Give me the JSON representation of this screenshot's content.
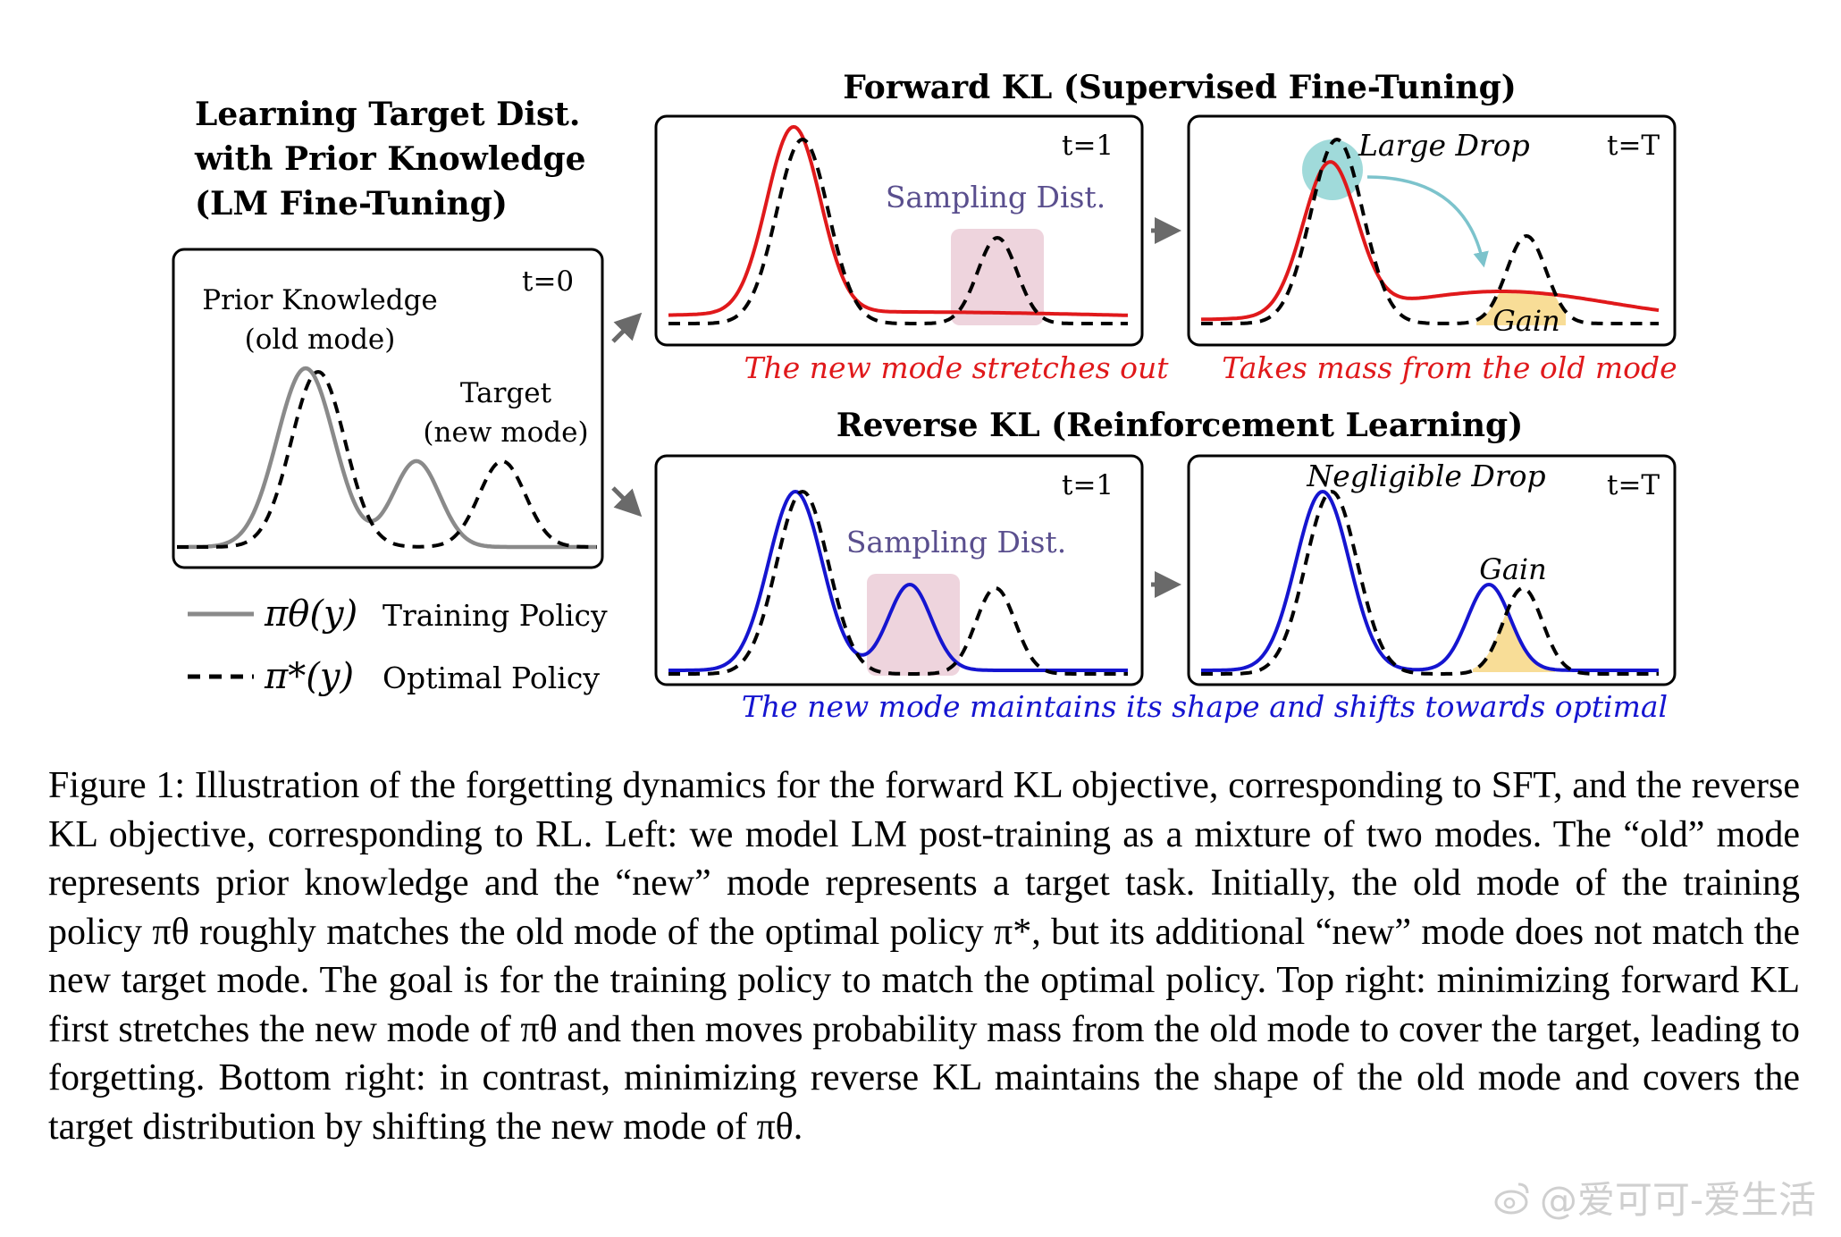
{
  "left_panel": {
    "heading_lines": [
      "Learning Target Dist.",
      "with Prior Knowledge",
      "(LM Fine-Tuning)"
    ],
    "time_label": "t=0",
    "prior_lines": [
      "Prior Knowledge",
      "(old mode)"
    ],
    "target_lines": [
      "Target",
      "(new mode)"
    ]
  },
  "legend": {
    "training_symbol": "πθ(y)",
    "training_label": "Training Policy",
    "optimal_symbol": "π*(y)",
    "optimal_label": "Optimal Policy"
  },
  "forward": {
    "title": "Forward KL (Supervised Fine-Tuning)",
    "t1_label": "t=1",
    "tT_label": "t=T",
    "sampling_label": "Sampling Dist.",
    "large_drop_label": "Large Drop",
    "gain_label": "Gain",
    "left_caption": "The new mode stretches out",
    "right_caption": "Takes mass from the old mode"
  },
  "reverse": {
    "title": "Reverse KL (Reinforcement Learning)",
    "t1_label": "t=1",
    "tT_label": "t=T",
    "sampling_label": "Sampling Dist.",
    "negligible_drop_label": "Negligible Drop",
    "gain_label": "Gain",
    "caption": "The new mode maintains its shape and shifts towards optimal"
  },
  "colors": {
    "training_gray": "#8a8a8a",
    "forward_red": "#e0191b",
    "reverse_blue": "#1515d0",
    "sampling_pink": "#e8c5d2",
    "teal_circle": "#8fd3d3",
    "gain_yellow": "#f7d98c",
    "sampling_text": "#5a4f8e"
  },
  "caption": {
    "figure_label": "Figure 1:",
    "text": "Illustration of the forgetting dynamics for the forward KL objective, corresponding to SFT, and the reverse KL objective, corresponding to RL. Left: we model LM post-training as a mixture of two modes. The “old” mode represents prior knowledge and the “new” mode represents a target task. Initially, the old mode of the training policy πθ roughly matches the old mode of the optimal policy π*, but its additional “new” mode does not match the new target mode. The goal is for the training policy to match the optimal policy. Top right: minimizing forward KL first stretches the new mode of πθ and then moves probability mass from the old mode to cover the target, leading to forgetting. Bottom right: in contrast, minimizing reverse KL maintains the shape of the old mode and covers the target distribution by shifting the new mode of πθ."
  },
  "watermark": {
    "text": "@爱可可-爱生活"
  }
}
